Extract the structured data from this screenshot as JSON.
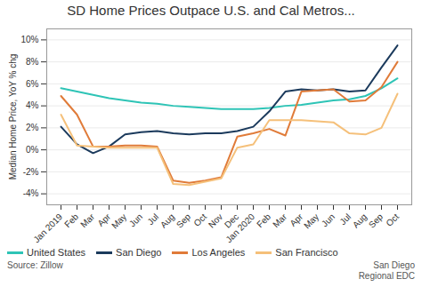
{
  "chart_data": {
    "type": "line",
    "title": "SD Home Prices Outpace U.S. and Cal Metros...",
    "y_label": "Median Home Price, YoY % chg",
    "annotations": [
      "Source: Zillow",
      "San Diego\nRegional EDC"
    ],
    "categories": [
      "Jan 2019",
      "Feb",
      "Mar",
      "Apr",
      "May",
      "Jun",
      "Jul",
      "Aug",
      "Sep",
      "Oct",
      "Nov",
      "Dec",
      "Jan 2020",
      "Feb",
      "Mar",
      "Apr",
      "May",
      "Jun",
      "Jul",
      "Aug",
      "Sep",
      "Oct"
    ],
    "series": [
      {
        "name": "United States",
        "color": "#2ec4b6",
        "values": [
          5.6,
          5.3,
          5.0,
          4.7,
          4.5,
          4.3,
          4.2,
          4.0,
          3.9,
          3.8,
          3.7,
          3.7,
          3.7,
          3.8,
          4.0,
          4.1,
          4.3,
          4.5,
          4.6,
          4.9,
          5.6,
          6.5
        ]
      },
      {
        "name": "San Diego",
        "color": "#1b3a5c",
        "values": [
          2.1,
          0.5,
          -0.3,
          0.3,
          1.4,
          1.6,
          1.7,
          1.5,
          1.4,
          1.5,
          1.5,
          1.7,
          2.1,
          3.5,
          5.3,
          5.5,
          5.4,
          5.5,
          5.3,
          5.4,
          7.5,
          9.5
        ]
      },
      {
        "name": "Los Angeles",
        "color": "#e07b39",
        "values": [
          4.9,
          3.2,
          0.3,
          0.3,
          0.4,
          0.4,
          0.3,
          -2.8,
          -3.0,
          -2.8,
          -2.5,
          1.2,
          1.5,
          1.9,
          1.3,
          5.3,
          5.4,
          5.5,
          4.4,
          4.5,
          5.7,
          8.0
        ]
      },
      {
        "name": "San Francisco",
        "color": "#f5c07a",
        "values": [
          3.2,
          0.4,
          0.3,
          0.2,
          0.2,
          0.2,
          0.2,
          -3.1,
          -3.2,
          -2.9,
          -2.6,
          0.2,
          0.5,
          2.7,
          2.7,
          2.7,
          2.6,
          2.5,
          1.5,
          1.4,
          2.0,
          5.1
        ]
      }
    ],
    "ylim": [
      -5,
      11
    ],
    "yticks": [
      {
        "value": -4,
        "label": "-4%"
      },
      {
        "value": -2,
        "label": "-2%"
      },
      {
        "value": 0,
        "label": "0%"
      },
      {
        "value": 2,
        "label": "2%"
      },
      {
        "value": 4,
        "label": "4%"
      },
      {
        "value": 6,
        "label": "6%"
      },
      {
        "value": 8,
        "label": "8%"
      },
      {
        "value": 10,
        "label": "10%"
      }
    ],
    "grid": true,
    "legend": "bottom"
  }
}
